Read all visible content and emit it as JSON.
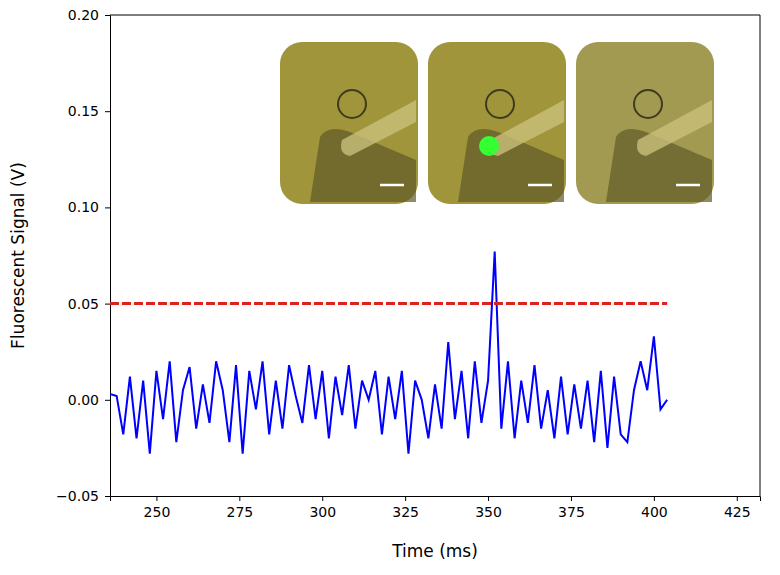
{
  "chart_data": {
    "type": "line",
    "x_label": "Time (ms)",
    "y_label": "Fluorescent Signal (V)",
    "xlim": [
      236,
      432
    ],
    "xticks": [
      250,
      275,
      300,
      325,
      350,
      375,
      400,
      425
    ],
    "ylim": [
      -0.05,
      0.2
    ],
    "yticks": [
      {
        "value": -0.05,
        "label": "−0.05"
      },
      {
        "value": 0,
        "label": "0.00"
      },
      {
        "value": 0.05,
        "label": "0.05"
      },
      {
        "value": 0.1,
        "label": "0.10"
      },
      {
        "value": 0.15,
        "label": "0.15"
      },
      {
        "value": 0.2,
        "label": "0.20"
      }
    ],
    "grid": false,
    "series": [
      {
        "color": "#0000ff",
        "line_style": "solid",
        "x": [
          236,
          238,
          240,
          242,
          244,
          246,
          248,
          250,
          252,
          254,
          256,
          258,
          260,
          262,
          264,
          266,
          268,
          270,
          272,
          274,
          276,
          278,
          280,
          282,
          284,
          286,
          288,
          290,
          292,
          294,
          296,
          298,
          300,
          302,
          304,
          306,
          308,
          310,
          312,
          314,
          316,
          318,
          320,
          322,
          324,
          326,
          328,
          330,
          332,
          334,
          336,
          338,
          340,
          342,
          344,
          346,
          348,
          350,
          352,
          354,
          356,
          358,
          360,
          362,
          364,
          366,
          368,
          370,
          372,
          374,
          376,
          378,
          380,
          382,
          384,
          386,
          388,
          390,
          392,
          394,
          396,
          398,
          400,
          402,
          404
        ],
        "values": [
          0.003,
          0.002,
          -0.018,
          0.012,
          -0.02,
          0.01,
          -0.028,
          0.015,
          -0.01,
          0.02,
          -0.022,
          0.005,
          0.017,
          -0.015,
          0.008,
          -0.012,
          0.02,
          0.005,
          -0.022,
          0.018,
          -0.028,
          0.015,
          -0.005,
          0.02,
          -0.018,
          0.01,
          -0.015,
          0.018,
          0.002,
          -0.012,
          0.018,
          -0.01,
          0.015,
          -0.02,
          0.012,
          -0.008,
          0.018,
          -0.015,
          0.01,
          0.0,
          0.015,
          -0.018,
          0.012,
          -0.01,
          0.015,
          -0.028,
          0.01,
          0.0,
          -0.02,
          0.008,
          -0.015,
          0.03,
          -0.01,
          0.015,
          -0.02,
          0.02,
          -0.012,
          0.01,
          0.077,
          -0.015,
          0.02,
          -0.02,
          0.01,
          -0.012,
          0.018,
          -0.015,
          0.005,
          -0.02,
          0.012,
          -0.018,
          0.008,
          -0.015,
          0.01,
          -0.022,
          0.015,
          -0.025,
          0.012,
          -0.018,
          -0.022,
          0.005,
          0.02,
          0.005,
          0.033,
          -0.005,
          0.0
        ]
      },
      {
        "color": "#e0201b",
        "line_style": "dashed",
        "x": [
          236,
          404
        ],
        "values": [
          0.05,
          0.05
        ]
      }
    ]
  }
}
